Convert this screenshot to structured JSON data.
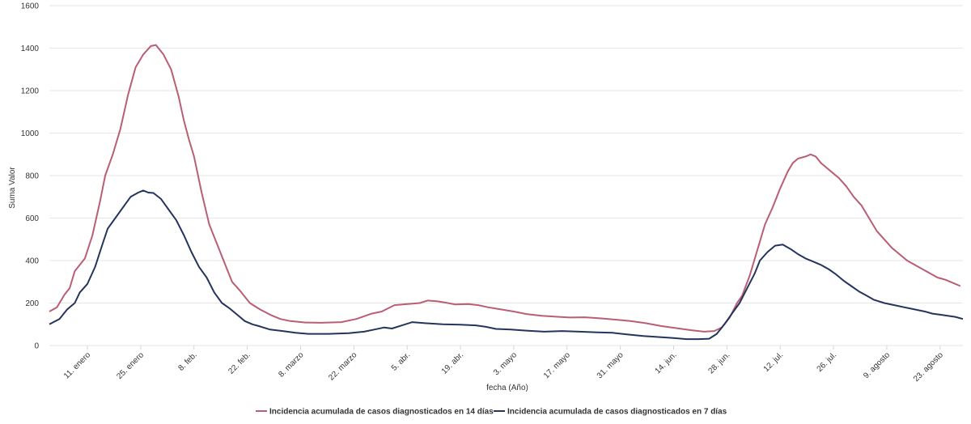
{
  "chart_data": {
    "type": "line",
    "title": "",
    "xlabel": "fecha (Año)",
    "ylabel": "Suma Valor",
    "ylim": [
      0,
      1600
    ],
    "yticks": [
      0,
      200,
      400,
      600,
      800,
      1000,
      1200,
      1400,
      1600
    ],
    "grid": true,
    "legend_position": "bottom",
    "x_ticks": [
      "11. enero",
      "25. enero",
      "8. feb.",
      "22. feb.",
      "8. marzo",
      "22. marzo",
      "5. abr.",
      "19. abr.",
      "3. mayo",
      "17. mayo",
      "31. mayo",
      "14. jun.",
      "28. jun.",
      "12. jul.",
      "26. jul.",
      "9. agosto",
      "23. agosto"
    ],
    "x_start": "1 enero",
    "x_end": "28 agosto",
    "series": [
      {
        "name": "Incidencia acumulada de casos diagnosticados en 14 días",
        "color": "#b95e74",
        "values": [
          [
            0,
            160
          ],
          [
            3,
            180
          ],
          [
            6,
            240
          ],
          [
            8,
            270
          ],
          [
            10,
            350
          ],
          [
            14,
            410
          ],
          [
            17,
            520
          ],
          [
            20,
            680
          ],
          [
            22,
            800
          ],
          [
            25,
            900
          ],
          [
            28,
            1020
          ],
          [
            31,
            1180
          ],
          [
            34,
            1310
          ],
          [
            37,
            1370
          ],
          [
            40,
            1410
          ],
          [
            42,
            1415
          ],
          [
            45,
            1370
          ],
          [
            48,
            1300
          ],
          [
            51,
            1170
          ],
          [
            53,
            1060
          ],
          [
            55,
            970
          ],
          [
            57,
            890
          ],
          [
            60,
            720
          ],
          [
            63,
            570
          ],
          [
            66,
            480
          ],
          [
            70,
            360
          ],
          [
            72,
            300
          ],
          [
            75,
            260
          ],
          [
            79,
            200
          ],
          [
            83,
            170
          ],
          [
            87,
            145
          ],
          [
            91,
            125
          ],
          [
            95,
            115
          ],
          [
            101,
            108
          ],
          [
            107,
            107
          ],
          [
            115,
            110
          ],
          [
            121,
            125
          ],
          [
            127,
            150
          ],
          [
            131,
            160
          ],
          [
            136,
            190
          ],
          [
            141,
            195
          ],
          [
            146,
            200
          ],
          [
            149,
            212
          ],
          [
            153,
            208
          ],
          [
            157,
            200
          ],
          [
            160,
            193
          ],
          [
            165,
            195
          ],
          [
            169,
            190
          ],
          [
            173,
            180
          ],
          [
            178,
            170
          ],
          [
            183,
            160
          ],
          [
            188,
            148
          ],
          [
            194,
            140
          ],
          [
            199,
            136
          ],
          [
            205,
            132
          ],
          [
            211,
            133
          ],
          [
            217,
            128
          ],
          [
            223,
            122
          ],
          [
            229,
            115
          ],
          [
            235,
            105
          ],
          [
            241,
            92
          ],
          [
            247,
            82
          ],
          [
            253,
            72
          ],
          [
            258,
            65
          ],
          [
            262,
            68
          ],
          [
            265,
            85
          ],
          [
            268,
            130
          ],
          [
            271,
            200
          ],
          [
            273,
            235
          ],
          [
            276,
            330
          ],
          [
            279,
            450
          ],
          [
            282,
            570
          ],
          [
            285,
            650
          ],
          [
            288,
            740
          ],
          [
            291,
            820
          ],
          [
            293,
            860
          ],
          [
            295,
            880
          ],
          [
            298,
            890
          ],
          [
            300,
            900
          ],
          [
            302,
            890
          ],
          [
            304,
            860
          ],
          [
            306,
            840
          ],
          [
            308,
            820
          ],
          [
            311,
            790
          ],
          [
            314,
            750
          ],
          [
            317,
            700
          ],
          [
            320,
            660
          ],
          [
            323,
            600
          ],
          [
            326,
            540
          ],
          [
            329,
            500
          ],
          [
            332,
            460
          ],
          [
            335,
            430
          ],
          [
            338,
            400
          ],
          [
            341,
            380
          ],
          [
            344,
            360
          ],
          [
            347,
            340
          ],
          [
            350,
            320
          ],
          [
            353,
            310
          ],
          [
            356,
            295
          ],
          [
            359,
            280
          ]
        ]
      },
      {
        "name": "Incidencia acumulada de casos diagnosticados en 7 días",
        "color": "#25345d",
        "values": [
          [
            0,
            100
          ],
          [
            4,
            125
          ],
          [
            7,
            170
          ],
          [
            10,
            200
          ],
          [
            12,
            250
          ],
          [
            15,
            290
          ],
          [
            18,
            370
          ],
          [
            21,
            480
          ],
          [
            23,
            550
          ],
          [
            26,
            600
          ],
          [
            29,
            650
          ],
          [
            32,
            700
          ],
          [
            35,
            720
          ],
          [
            37,
            730
          ],
          [
            39,
            720
          ],
          [
            41,
            718
          ],
          [
            44,
            690
          ],
          [
            47,
            640
          ],
          [
            50,
            590
          ],
          [
            53,
            520
          ],
          [
            56,
            440
          ],
          [
            59,
            370
          ],
          [
            62,
            320
          ],
          [
            65,
            250
          ],
          [
            68,
            200
          ],
          [
            71,
            175
          ],
          [
            74,
            145
          ],
          [
            77,
            115
          ],
          [
            80,
            100
          ],
          [
            83,
            90
          ],
          [
            87,
            75
          ],
          [
            92,
            68
          ],
          [
            97,
            60
          ],
          [
            102,
            55
          ],
          [
            110,
            55
          ],
          [
            118,
            58
          ],
          [
            124,
            65
          ],
          [
            128,
            75
          ],
          [
            132,
            85
          ],
          [
            135,
            80
          ],
          [
            139,
            95
          ],
          [
            143,
            110
          ],
          [
            148,
            105
          ],
          [
            155,
            100
          ],
          [
            162,
            98
          ],
          [
            168,
            95
          ],
          [
            172,
            88
          ],
          [
            176,
            78
          ],
          [
            182,
            75
          ],
          [
            188,
            70
          ],
          [
            195,
            65
          ],
          [
            202,
            68
          ],
          [
            209,
            65
          ],
          [
            216,
            62
          ],
          [
            222,
            60
          ],
          [
            228,
            52
          ],
          [
            234,
            45
          ],
          [
            240,
            40
          ],
          [
            246,
            35
          ],
          [
            251,
            30
          ],
          [
            256,
            30
          ],
          [
            260,
            32
          ],
          [
            263,
            55
          ],
          [
            266,
            100
          ],
          [
            269,
            150
          ],
          [
            272,
            200
          ],
          [
            275,
            270
          ],
          [
            278,
            340
          ],
          [
            280,
            400
          ],
          [
            283,
            440
          ],
          [
            286,
            470
          ],
          [
            289,
            475
          ],
          [
            292,
            455
          ],
          [
            295,
            430
          ],
          [
            298,
            410
          ],
          [
            301,
            395
          ],
          [
            304,
            380
          ],
          [
            307,
            360
          ],
          [
            310,
            335
          ],
          [
            313,
            305
          ],
          [
            316,
            280
          ],
          [
            319,
            255
          ],
          [
            322,
            235
          ],
          [
            325,
            215
          ],
          [
            329,
            200
          ],
          [
            333,
            190
          ],
          [
            337,
            180
          ],
          [
            341,
            170
          ],
          [
            345,
            160
          ],
          [
            348,
            150
          ],
          [
            351,
            145
          ],
          [
            354,
            140
          ],
          [
            357,
            135
          ],
          [
            360,
            125
          ]
        ]
      }
    ]
  }
}
